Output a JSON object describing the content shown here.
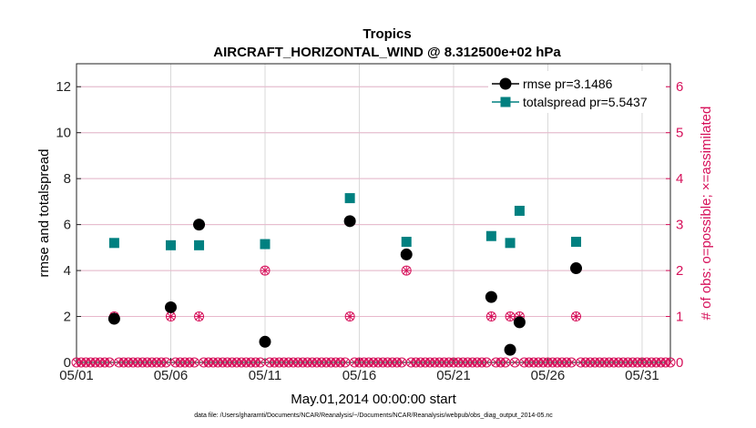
{
  "chart_data": {
    "type": "scatter",
    "title": "Tropics",
    "subtitle": "AIRCRAFT_HORIZONTAL_WIND @ 8.312500e+02 hPa",
    "xlabel": "May.01,2014 00:00:00 start",
    "ylabel": "rmse and totalspread",
    "ylabel_right": "# of obs: o=possible; ×=assimilated",
    "xlim": [
      0,
      31.5
    ],
    "ylim": [
      0,
      13
    ],
    "ylim_right": [
      0,
      6.5
    ],
    "x_ticks": [
      0,
      5,
      10,
      15,
      20,
      25,
      30
    ],
    "x_tick_labels": [
      "05/01",
      "05/06",
      "05/11",
      "05/16",
      "05/21",
      "05/26",
      "05/31"
    ],
    "y_ticks": [
      0,
      2,
      4,
      6,
      8,
      10,
      12
    ],
    "y_tick_labels": [
      "0",
      "2",
      "4",
      "6",
      "8",
      "10",
      "12"
    ],
    "y_ticks_right": [
      0,
      1,
      2,
      3,
      4,
      5,
      6
    ],
    "y_tick_labels_right": [
      "0",
      "1",
      "2",
      "3",
      "4",
      "5",
      "6"
    ],
    "grid": true,
    "legend_position": "top-right",
    "series": [
      {
        "name": "rmse pr=3.1486",
        "color": "#000000",
        "marker": "circle",
        "points": [
          [
            2,
            1.9
          ],
          [
            5,
            2.4
          ],
          [
            6.5,
            6.0
          ],
          [
            10,
            0.9
          ],
          [
            14.5,
            6.15
          ],
          [
            17.5,
            4.7
          ],
          [
            22,
            2.85
          ],
          [
            23,
            0.55
          ],
          [
            23.5,
            1.75
          ],
          [
            26.5,
            4.1
          ]
        ]
      },
      {
        "name": "totalspread pr=5.5437",
        "color": "#008080",
        "marker": "square",
        "points": [
          [
            2,
            5.2
          ],
          [
            5,
            5.1
          ],
          [
            6.5,
            5.1
          ],
          [
            10,
            5.15
          ],
          [
            14.5,
            7.15
          ],
          [
            17.5,
            5.25
          ],
          [
            22,
            5.5
          ],
          [
            23,
            5.2
          ],
          [
            23.5,
            6.6
          ],
          [
            26.5,
            5.25
          ]
        ]
      },
      {
        "name": "obs possible",
        "color": "#d6105a",
        "marker": "circle-open",
        "axis": "right",
        "x_start": 0,
        "x_end": 31.5,
        "x_step": 0.25,
        "baseline": 0,
        "nonzero": [
          [
            2,
            1
          ],
          [
            5,
            1
          ],
          [
            6.5,
            1
          ],
          [
            10,
            2
          ],
          [
            14.5,
            1
          ],
          [
            17.5,
            2
          ],
          [
            22,
            1
          ],
          [
            23,
            1
          ],
          [
            23.5,
            1
          ],
          [
            26.5,
            1
          ]
        ]
      },
      {
        "name": "obs assimilated",
        "color": "#d6105a",
        "marker": "x",
        "axis": "right",
        "x_start": 0,
        "x_end": 31.5,
        "x_step": 0.25,
        "baseline": 0,
        "nonzero": [
          [
            2,
            1
          ],
          [
            5,
            1
          ],
          [
            6.5,
            1
          ],
          [
            10,
            2
          ],
          [
            14.5,
            1
          ],
          [
            17.5,
            2
          ],
          [
            22,
            1
          ],
          [
            23,
            1
          ],
          [
            23.5,
            1
          ],
          [
            26.5,
            1
          ]
        ]
      }
    ],
    "footnote": "data file: /Users/gharamti/Documents/NCAR/Reanalysis/~/Documents/NCAR/Reanalysis/webpub/obs_diag_output_2014-05.nc"
  }
}
